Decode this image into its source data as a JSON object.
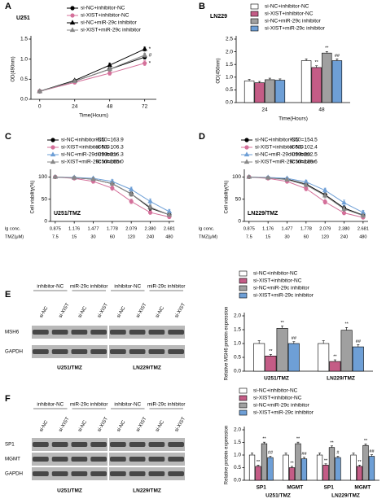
{
  "chart_data": [
    {
      "panel": "A",
      "type": "line",
      "title": "U251",
      "xlabel": "Time(Hours)",
      "ylabel": "OD(490nm)",
      "x": [
        0,
        24,
        48,
        72
      ],
      "xlim": [
        -6,
        80
      ],
      "xticks": [
        0,
        24,
        48,
        72
      ],
      "ylim": [
        0,
        1.5
      ],
      "yticks": [
        {
          "value": 0,
          "label": "0.0"
        },
        {
          "value": 0.5,
          "label": "0.5"
        },
        {
          "value": 1,
          "label": "1.0"
        },
        {
          "value": 1.5,
          "label": "1.5"
        }
      ],
      "series": [
        {
          "name": "si-NC+inhibitor-NC",
          "color": "#000000",
          "marker": "circle",
          "values": [
            0.2,
            0.45,
            0.75,
            1.05
          ],
          "errors": [
            0.02,
            0.03,
            0.05,
            0.05
          ]
        },
        {
          "name": "si-XIST+inhibitor-NC",
          "color": "#d4709a",
          "marker": "circle",
          "values": [
            0.2,
            0.42,
            0.65,
            0.9
          ],
          "errors": [
            0.02,
            0.03,
            0.05,
            0.06
          ],
          "significance": [
            null,
            null,
            null,
            "*"
          ]
        },
        {
          "name": "si-NC+miR-29c inhibitor",
          "color": "#000000",
          "marker": "triangle",
          "values": [
            0.2,
            0.47,
            0.85,
            1.25
          ],
          "errors": [
            0.02,
            0.03,
            0.05,
            0.05
          ],
          "significance": [
            null,
            null,
            null,
            "*"
          ]
        },
        {
          "name": "si-XIST+miR-29c inhibitor",
          "color": "#888888",
          "marker": "triangle",
          "values": [
            0.2,
            0.45,
            0.75,
            1.1
          ],
          "errors": [
            0.02,
            0.03,
            0.05,
            0.05
          ],
          "significance": [
            null,
            null,
            null,
            "#"
          ]
        }
      ]
    },
    {
      "panel": "B",
      "type": "bar",
      "title": "LN229",
      "xlabel": "Time(Hours)",
      "ylabel": "OD(450nm)",
      "categories": [
        "24",
        "48"
      ],
      "ylim": [
        0,
        2.5
      ],
      "yticks": [
        {
          "value": 0,
          "label": "0.0"
        },
        {
          "value": 0.5,
          "label": "0.5"
        },
        {
          "value": 1,
          "label": "1.0"
        },
        {
          "value": 1.5,
          "label": "1.5"
        },
        {
          "value": 2,
          "label": "2.0"
        },
        {
          "value": 2.5,
          "label": "2.5"
        }
      ],
      "series": [
        {
          "name": "si-NC+inhibitor-NC",
          "color": "#ffffff",
          "values": [
            0.85,
            1.65
          ],
          "errors": [
            0.06,
            0.07
          ]
        },
        {
          "name": "si-XIST+inhibitor-NC",
          "color": "#c45c86",
          "values": [
            0.78,
            1.38
          ],
          "errors": [
            0.05,
            0.07
          ],
          "significance": [
            null,
            "**"
          ]
        },
        {
          "name": "si-NC+miR-29c inhibitor",
          "color": "#a0a0a0",
          "values": [
            0.9,
            1.95
          ],
          "errors": [
            0.06,
            0.06
          ],
          "significance": [
            null,
            "**"
          ]
        },
        {
          "name": "si-XIST+miR-29c inhibitor",
          "color": "#6e9fd6",
          "values": [
            0.88,
            1.65
          ],
          "errors": [
            0.05,
            0.07
          ],
          "significance": [
            null,
            "##"
          ]
        }
      ]
    },
    {
      "panel": "C",
      "type": "line",
      "title": "U251/TMZ",
      "xlabel": "lg conc.",
      "ylabel": "Cell viability(%)",
      "x": [
        0.875,
        1.176,
        1.477,
        1.778,
        2.079,
        2.38,
        2.681
      ],
      "xlim": [
        0.8,
        2.76
      ],
      "xticks": [
        0.875,
        1.176,
        1.477,
        1.778,
        2.079,
        {
          "value": 2.38,
          "label": "2.380"
        },
        2.681
      ],
      "x2label": "TMZ(μM)",
      "x2ticklabels": [
        7.5,
        15,
        30,
        60,
        120,
        240,
        480
      ],
      "ylim": [
        0,
        110
      ],
      "yticks": [
        0,
        50,
        100
      ],
      "series": [
        {
          "name": "si-NC+inhibitor-NC",
          "note": "IC50=163.9",
          "color": "#000000",
          "marker": "circle",
          "values": [
            100,
            98,
            95,
            85,
            62,
            30,
            15
          ],
          "errors": [
            2,
            3,
            3,
            4,
            5,
            5,
            4
          ]
        },
        {
          "name": "si-XIST+inhibitor-NC",
          "note": "IC50=106.3",
          "color": "#d4709a",
          "marker": "circle",
          "values": [
            100,
            97,
            90,
            75,
            45,
            20,
            10
          ],
          "errors": [
            2,
            3,
            4,
            5,
            5,
            4,
            3
          ]
        },
        {
          "name": "si-NC+miR-29c inhibitor",
          "note": "IC50=216.3",
          "color": "#6e9fd6",
          "marker": "triangle",
          "values": [
            100,
            99,
            97,
            90,
            72,
            45,
            22
          ],
          "errors": [
            2,
            3,
            3,
            4,
            5,
            6,
            5
          ]
        },
        {
          "name": "si-XIST+miR-29c inhibitor",
          "note": "IC50=155.0",
          "color": "#888888",
          "marker": "triangle",
          "values": [
            100,
            98,
            95,
            85,
            62,
            32,
            15
          ],
          "errors": [
            2,
            3,
            3,
            4,
            5,
            5,
            4
          ]
        }
      ]
    },
    {
      "panel": "D",
      "type": "line",
      "title": "LN229/TMZ",
      "xlabel": "lg conc.",
      "ylabel": "Cell viability(%)",
      "x": [
        0.875,
        1.176,
        1.477,
        1.778,
        2.079,
        2.38,
        2.681
      ],
      "xlim": [
        0.8,
        2.76
      ],
      "xticks": [
        0.875,
        1.176,
        1.477,
        1.778,
        2.079,
        {
          "value": 2.38,
          "label": "2.380"
        },
        2.681
      ],
      "x2label": "TMZ(μM)",
      "x2ticklabels": [
        7.5,
        15,
        30,
        60,
        120,
        240,
        480
      ],
      "ylim": [
        0,
        110
      ],
      "yticks": [
        0,
        50,
        100
      ],
      "series": [
        {
          "name": "si-NC+inhibitor-NC",
          "note": "IC50=154.5",
          "color": "#000000",
          "marker": "circle",
          "values": [
            100,
            98,
            95,
            84,
            60,
            30,
            14
          ],
          "errors": [
            2,
            3,
            3,
            4,
            5,
            5,
            4
          ]
        },
        {
          "name": "si-XIST+inhibitor-NC",
          "note": "IC50=102.4",
          "color": "#d4709a",
          "marker": "circle",
          "values": [
            100,
            97,
            90,
            74,
            44,
            19,
            9
          ],
          "errors": [
            2,
            3,
            4,
            5,
            5,
            4,
            3
          ]
        },
        {
          "name": "si-NC+miR-29c inhibitor",
          "note": "IC50=202.5",
          "color": "#6e9fd6",
          "marker": "triangle",
          "values": [
            100,
            99,
            97,
            89,
            70,
            42,
            20
          ],
          "errors": [
            2,
            3,
            3,
            4,
            5,
            6,
            5
          ]
        },
        {
          "name": "si-XIST+miR-29c inhibitor",
          "note": "IC50=139.6",
          "color": "#888888",
          "marker": "triangle",
          "values": [
            100,
            98,
            94,
            82,
            58,
            28,
            13
          ],
          "errors": [
            2,
            3,
            3,
            4,
            5,
            5,
            4
          ]
        }
      ]
    },
    {
      "panel": "E",
      "type": "bar",
      "ylabel": "Relative MSH6 protein expression",
      "categories": [
        "U251/TMZ",
        "LN229/TMZ"
      ],
      "ylim": [
        0,
        2
      ],
      "yticks": [
        {
          "value": 0,
          "label": "0.0"
        },
        {
          "value": 0.5,
          "label": "0.5"
        },
        {
          "value": 1,
          "label": "1.0"
        },
        {
          "value": 1.5,
          "label": "1.5"
        },
        {
          "value": 2,
          "label": "2.0"
        }
      ],
      "series": [
        {
          "name": "si-NC+inhibitor-NC",
          "color": "#ffffff",
          "values": [
            1.0,
            1.0
          ],
          "errors": [
            0.1,
            0.1
          ]
        },
        {
          "name": "si-XIST+inhibitor-NC",
          "color": "#c45c86",
          "values": [
            0.55,
            0.35
          ],
          "errors": [
            0.05,
            0.06
          ],
          "significance": [
            "**",
            "**"
          ]
        },
        {
          "name": "si-NC+miR-29c inhibitor",
          "color": "#a0a0a0",
          "values": [
            1.55,
            1.48
          ],
          "errors": [
            0.08,
            0.1
          ],
          "significance": [
            "**",
            "**"
          ]
        },
        {
          "name": "si-XIST+miR-29c inhibitor",
          "color": "#6e9fd6",
          "values": [
            1.0,
            0.88
          ],
          "errors": [
            0.07,
            0.08
          ],
          "significance": [
            "##",
            "##"
          ]
        }
      ]
    },
    {
      "panel": "F",
      "type": "bar",
      "ylabel": "Relative protein expression",
      "categories": [
        "SP1",
        "MGMT",
        "SP1",
        "MGMT"
      ],
      "group_labels": [
        "U251/TMZ",
        "LN229/TMZ"
      ],
      "ylim": [
        0,
        2
      ],
      "yticks": [
        {
          "value": 0,
          "label": "0.0"
        },
        {
          "value": 0.5,
          "label": "0.5"
        },
        {
          "value": 1,
          "label": "1.0"
        },
        {
          "value": 1.5,
          "label": "1.5"
        },
        {
          "value": 2,
          "label": "2.0"
        }
      ],
      "series": [
        {
          "name": "si-NC+inhibitor-NC",
          "color": "#ffffff",
          "values": [
            1.0,
            1.0,
            1.0,
            1.0
          ],
          "errors": [
            0.08,
            0.08,
            0.08,
            0.08
          ]
        },
        {
          "name": "si-XIST+inhibitor-NC",
          "color": "#c45c86",
          "values": [
            0.55,
            0.5,
            0.6,
            0.55
          ],
          "errors": [
            0.05,
            0.05,
            0.05,
            0.05
          ],
          "significance": [
            "**",
            "**",
            "**",
            "**"
          ]
        },
        {
          "name": "si-NC+miR-29c inhibitor",
          "color": "#a0a0a0",
          "values": [
            1.45,
            1.45,
            1.3,
            1.38
          ],
          "errors": [
            0.06,
            0.06,
            0.06,
            0.06
          ],
          "significance": [
            "**",
            "**",
            "**",
            "**"
          ]
        },
        {
          "name": "si-XIST+miR-29c inhibitor",
          "color": "#6e9fd6",
          "values": [
            0.9,
            0.85,
            0.9,
            0.95
          ],
          "errors": [
            0.06,
            0.06,
            0.06,
            0.06
          ],
          "significance": [
            "##",
            "##",
            "#",
            "##"
          ]
        }
      ]
    }
  ],
  "blots": [
    {
      "headers": [
        "inhibitor-NC",
        "miR-29c inhibitor",
        "inhibitor-NC",
        "miR-29c inhibitor"
      ],
      "lanes": [
        "si-NC",
        "si-XIST",
        "si-NC",
        "si-XIST",
        "si-NC",
        "si-XIST",
        "si-NC",
        "si-XIST"
      ],
      "rows": [
        "MSH6",
        "GAPDH"
      ],
      "cells": [
        "U251/TMZ",
        "LN229/TMZ"
      ]
    },
    {
      "headers": [
        "inhibitor-NC",
        "miR-29c inhibitor",
        "inhibitor-NC",
        "miR-29c inhibitor"
      ],
      "lanes": [
        "si-NC",
        "si-XIST",
        "si-NC",
        "si-XIST",
        "si-NC",
        "si-XIST",
        "si-NC",
        "si-XIST"
      ],
      "rows": [
        "SP1",
        "MGMT",
        "GAPDH"
      ],
      "cells": [
        "U251/TMZ",
        "LN229/TMZ"
      ]
    }
  ]
}
